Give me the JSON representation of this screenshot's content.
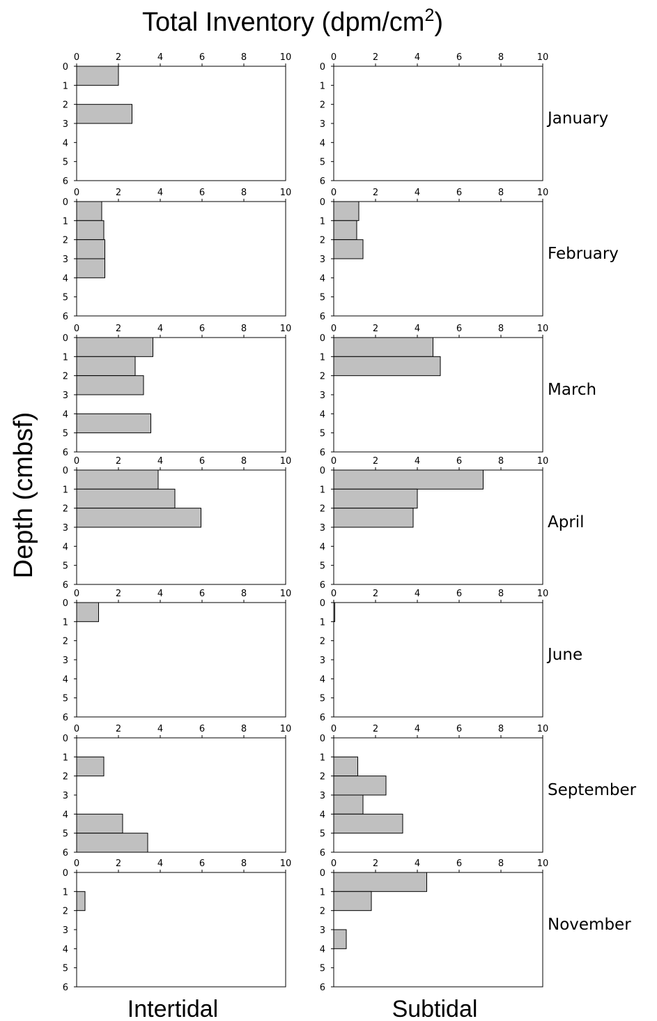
{
  "figure": {
    "title": "Total Inventory (dpm/cm",
    "title_superscript": "2",
    "title_suffix": ")",
    "ylabel": "Depth (cmbsf)",
    "column_labels": [
      "Intertidal",
      "Subtidal"
    ],
    "month_labels": [
      "January",
      "February",
      "March",
      "April",
      "June",
      "September",
      "November"
    ]
  },
  "chart_data": {
    "type": "bar",
    "orientation": "horizontal",
    "xlim": [
      0,
      10
    ],
    "ylim": [
      0,
      6
    ],
    "x_ticks": [
      0,
      2,
      4,
      6,
      8,
      10
    ],
    "y_ticks": [
      0,
      1,
      2,
      3,
      4,
      5,
      6
    ],
    "grid": false,
    "bar_color": "#c0c0c0",
    "panels": [
      {
        "month": "January",
        "site": "Intertidal",
        "bars": [
          {
            "top": 0,
            "bottom": 1,
            "value": 2.0
          },
          {
            "top": 2,
            "bottom": 3,
            "value": 2.65
          }
        ]
      },
      {
        "month": "January",
        "site": "Subtidal",
        "bars": []
      },
      {
        "month": "February",
        "site": "Intertidal",
        "bars": [
          {
            "top": 0,
            "bottom": 1,
            "value": 1.2
          },
          {
            "top": 1,
            "bottom": 2,
            "value": 1.3
          },
          {
            "top": 2,
            "bottom": 3,
            "value": 1.35
          },
          {
            "top": 3,
            "bottom": 4,
            "value": 1.35
          }
        ]
      },
      {
        "month": "February",
        "site": "Subtidal",
        "bars": [
          {
            "top": 0,
            "bottom": 1,
            "value": 1.2
          },
          {
            "top": 1,
            "bottom": 2,
            "value": 1.1
          },
          {
            "top": 2,
            "bottom": 3,
            "value": 1.4
          }
        ]
      },
      {
        "month": "March",
        "site": "Intertidal",
        "bars": [
          {
            "top": 0,
            "bottom": 1,
            "value": 3.65
          },
          {
            "top": 1,
            "bottom": 2,
            "value": 2.8
          },
          {
            "top": 2,
            "bottom": 3,
            "value": 3.2
          },
          {
            "top": 4,
            "bottom": 5,
            "value": 3.55
          }
        ]
      },
      {
        "month": "March",
        "site": "Subtidal",
        "bars": [
          {
            "top": 0,
            "bottom": 1,
            "value": 4.75
          },
          {
            "top": 1,
            "bottom": 2,
            "value": 5.1
          }
        ]
      },
      {
        "month": "April",
        "site": "Intertidal",
        "bars": [
          {
            "top": 0,
            "bottom": 1,
            "value": 3.9
          },
          {
            "top": 1,
            "bottom": 2,
            "value": 4.7
          },
          {
            "top": 2,
            "bottom": 3,
            "value": 5.95
          }
        ]
      },
      {
        "month": "April",
        "site": "Subtidal",
        "bars": [
          {
            "top": 0,
            "bottom": 1,
            "value": 7.15
          },
          {
            "top": 1,
            "bottom": 2,
            "value": 4.0
          },
          {
            "top": 2,
            "bottom": 3,
            "value": 3.8
          }
        ]
      },
      {
        "month": "June",
        "site": "Intertidal",
        "bars": [
          {
            "top": 0,
            "bottom": 1,
            "value": 1.05
          }
        ]
      },
      {
        "month": "June",
        "site": "Subtidal",
        "bars": [
          {
            "top": 0,
            "bottom": 1,
            "value": 0.05
          }
        ]
      },
      {
        "month": "September",
        "site": "Intertidal",
        "bars": [
          {
            "top": 1,
            "bottom": 2,
            "value": 1.3
          },
          {
            "top": 4,
            "bottom": 5,
            "value": 2.2
          },
          {
            "top": 5,
            "bottom": 6,
            "value": 3.4
          }
        ]
      },
      {
        "month": "September",
        "site": "Subtidal",
        "bars": [
          {
            "top": 1,
            "bottom": 2,
            "value": 1.15
          },
          {
            "top": 2,
            "bottom": 3,
            "value": 2.5
          },
          {
            "top": 3,
            "bottom": 4,
            "value": 1.4
          },
          {
            "top": 4,
            "bottom": 5,
            "value": 3.3
          }
        ]
      },
      {
        "month": "November",
        "site": "Intertidal",
        "bars": [
          {
            "top": 1,
            "bottom": 2,
            "value": 0.4
          }
        ]
      },
      {
        "month": "November",
        "site": "Subtidal",
        "bars": [
          {
            "top": 0,
            "bottom": 1,
            "value": 4.45
          },
          {
            "top": 1,
            "bottom": 2,
            "value": 1.8
          },
          {
            "top": 3,
            "bottom": 4,
            "value": 0.6
          }
        ]
      }
    ]
  }
}
